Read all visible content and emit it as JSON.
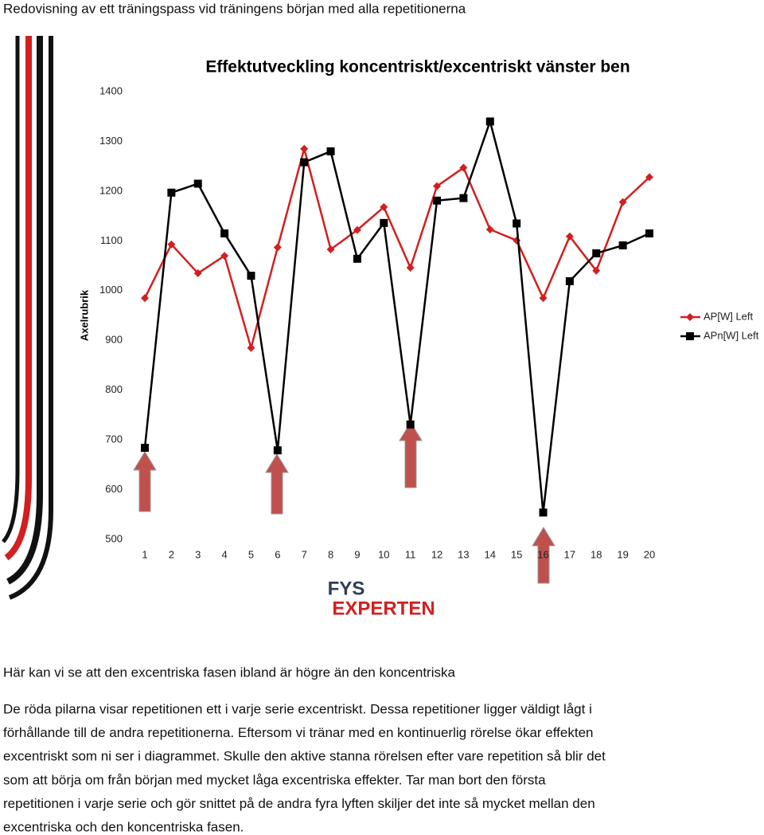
{
  "heading": "Redovisning av ett träningspass vid träningens början med alla repetitionerna",
  "chart_data": {
    "type": "line",
    "title": "Effektutveckling koncentriskt/excentriskt vänster ben",
    "ylabel": "Axelrubrik",
    "categories": [
      "1",
      "2",
      "3",
      "4",
      "5",
      "6",
      "7",
      "8",
      "9",
      "10",
      "11",
      "12",
      "13",
      "14",
      "15",
      "16",
      "17",
      "18",
      "19",
      "20"
    ],
    "series": [
      {
        "name": "AP[W] Left",
        "color": "#d21f1f",
        "marker": "diamond",
        "values": [
          985,
          1093,
          1035,
          1070,
          885,
          1087,
          1285,
          1083,
          1122,
          1168,
          1046,
          1210,
          1247,
          1123,
          1101,
          985,
          1109,
          1040,
          1178,
          1228
        ]
      },
      {
        "name": "APn[W] Left",
        "color": "#000000",
        "marker": "square",
        "values": [
          684,
          1197,
          1215,
          1115,
          1030,
          679,
          1258,
          1280,
          1064,
          1136,
          731,
          1181,
          1186,
          1340,
          1135,
          554,
          1019,
          1075,
          1091,
          1115
        ]
      }
    ],
    "ylim": [
      500,
      1400
    ],
    "yticks": [
      500,
      600,
      700,
      800,
      900,
      1000,
      1100,
      1200,
      1300,
      1400
    ],
    "grid": false,
    "legend": "right"
  },
  "logo": {
    "top": "FYS",
    "bottom": "EXPERTEN"
  },
  "summary": "Här kan vi se att den excentriska fasen ibland är högre än den koncentriska",
  "paragraph": [
    "De röda pilarna visar repetitionen ett i varje serie excentriskt. Dessa repetitioner ligger väldigt lågt i",
    "förhållande till de andra repetitionerna.  Eftersom vi tränar med en kontinuerlig rörelse ökar effekten",
    "excentriskt som ni ser i diagrammet. Skulle den aktive stanna rörelsen efter vare repetition så blir det",
    "som att börja om från början med mycket låga excentriska effekter. Tar man bort den första",
    "repetitionen i varje serie och gör snittet på de andra fyra lyften skiljer det inte så mycket mellan den",
    "excentriska och den koncentriska fasen."
  ]
}
